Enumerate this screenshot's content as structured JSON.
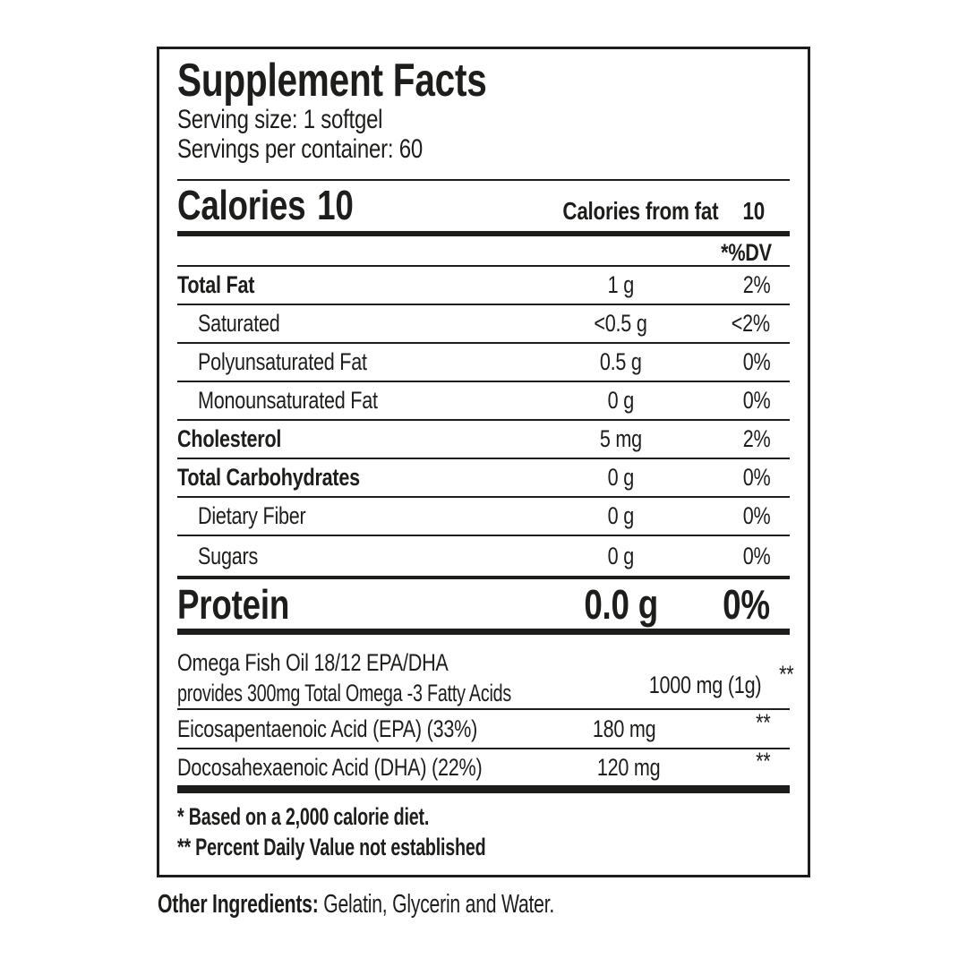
{
  "label": {
    "title": "Supplement Facts",
    "serving_size": "Serving size: 1 softgel",
    "servings_per_container": "Servings per container: 60",
    "calories": {
      "label": "Calories",
      "value": "10",
      "from_fat_label": "Calories from fat",
      "from_fat_value": "10"
    },
    "dv_header": "*%DV",
    "rows": [
      {
        "name": "Total Fat",
        "amount": "1 g",
        "dv": "2%",
        "bold": true,
        "indent": false
      },
      {
        "name": "Saturated",
        "amount": "<0.5 g",
        "dv": "<2%",
        "bold": false,
        "indent": true
      },
      {
        "name": "Polyunsaturated Fat",
        "amount": "0.5 g",
        "dv": "0%",
        "bold": false,
        "indent": true
      },
      {
        "name": "Monounsaturated Fat",
        "amount": "0 g",
        "dv": "0%",
        "bold": false,
        "indent": true
      },
      {
        "name": "Cholesterol",
        "amount": "5 mg",
        "dv": "2%",
        "bold": true,
        "indent": false
      },
      {
        "name": "Total Carbohydrates",
        "amount": "0 g",
        "dv": "0%",
        "bold": true,
        "indent": false
      },
      {
        "name": "Dietary Fiber",
        "amount": "0 g",
        "dv": "0%",
        "bold": false,
        "indent": true
      },
      {
        "name": "Sugars",
        "amount": "0 g",
        "dv": "0%",
        "bold": false,
        "indent": true
      }
    ],
    "protein": {
      "name": "Protein",
      "amount": "0.0 g",
      "dv": "0%"
    },
    "supplement_rows": [
      {
        "name_lines": [
          "Omega Fish Oil 18/12 EPA/DHA",
          "provides 300mg Total Omega -3 Fatty Acids"
        ],
        "amount": "1000 mg (1g)",
        "dv": "**"
      },
      {
        "name_lines": [
          "Eicosapentaenoic Acid (EPA) (33%)"
        ],
        "amount": "180 mg",
        "dv": "**"
      },
      {
        "name_lines": [
          "Docosahexaenoic Acid (DHA) (22%)"
        ],
        "amount": "120 mg",
        "dv": "**"
      }
    ],
    "footnotes": [
      "* Based on a 2,000 calorie diet.",
      "** Percent Daily Value not established"
    ],
    "other_ingredients": {
      "label": "Other Ingredients:",
      "text": "Gelatin, Glycerin and Water."
    },
    "colors": {
      "ink": "#1d1d1b",
      "background": "#ffffff"
    }
  }
}
